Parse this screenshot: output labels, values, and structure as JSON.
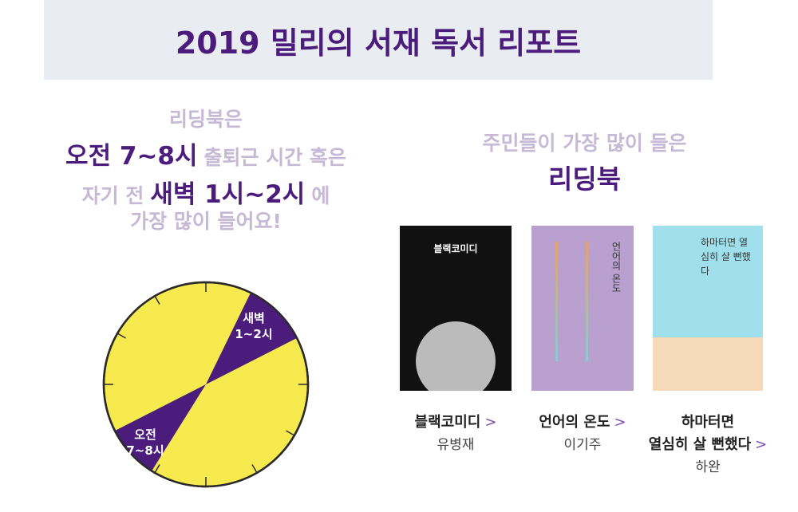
{
  "header": {
    "title": "2019 밀리의 서재 독서 리포트"
  },
  "left": {
    "lines": [
      [
        {
          "text": "리딩북은",
          "strong": false
        }
      ],
      [
        {
          "text": "오전 7~8시",
          "strong": true
        },
        {
          "text": "출퇴근 시간 혹은",
          "strong": false
        }
      ],
      [
        {
          "text": "자기 전",
          "strong": false
        },
        {
          "text": "새벽 1시~2시",
          "strong": true
        },
        {
          "text": "에",
          "strong": false
        }
      ],
      [
        {
          "text": "가장 많이 들어요!",
          "strong": false
        }
      ]
    ],
    "clock_labels": [
      [
        "새벽",
        "1~2시"
      ],
      [
        "오전",
        "7~8시"
      ]
    ]
  },
  "right": {
    "heading": [
      "주민들이 가장 많이 들은",
      "리딩북"
    ],
    "books": [
      {
        "cover_text": "블랙코미디",
        "title": [
          "블랙코미디"
        ],
        "author": "유병재"
      },
      {
        "cover_text": "언어의 온도",
        "title": [
          "언어의 온도"
        ],
        "author": "이기주"
      },
      {
        "cover_text": "하마터면 열심히 살 뻔했다",
        "title": [
          "하마터면",
          "열심히 살 뻔했다"
        ],
        "author": "하완"
      }
    ]
  }
}
